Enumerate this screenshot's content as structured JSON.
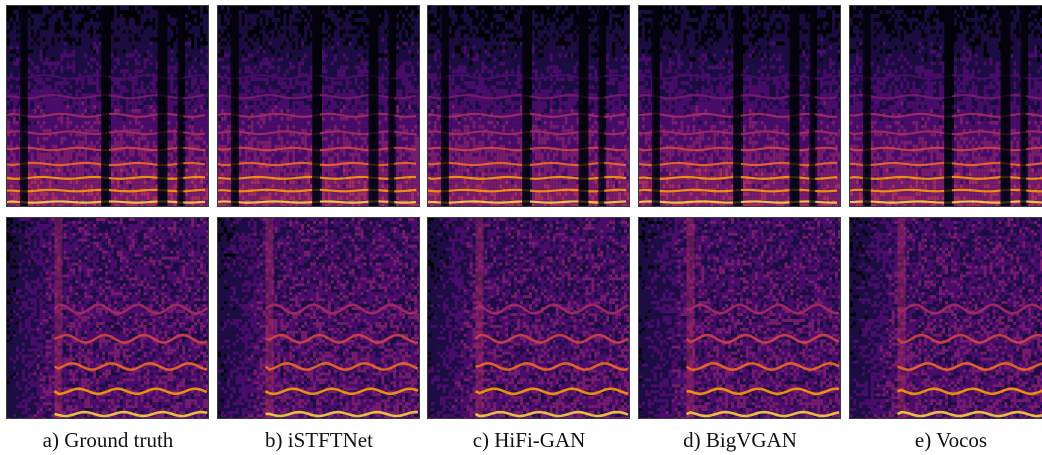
{
  "figure": {
    "panels": [
      {
        "id": "a",
        "caption": "a) Ground truth",
        "seed": 11
      },
      {
        "id": "b",
        "caption": "b) iSTFTNet",
        "seed": 23
      },
      {
        "id": "c",
        "caption": "c) HiFi-GAN",
        "seed": 37
      },
      {
        "id": "d",
        "caption": "d) BigVGAN",
        "seed": 41
      },
      {
        "id": "e",
        "caption": "e) Vocos",
        "seed": 53
      }
    ],
    "colormap": [
      "#000004",
      "#1b0c41",
      "#4a0c6b",
      "#781c6d",
      "#a52c60",
      "#cf4446",
      "#ed6925",
      "#fb9b06",
      "#f7d13d",
      "#fcffa4"
    ]
  }
}
